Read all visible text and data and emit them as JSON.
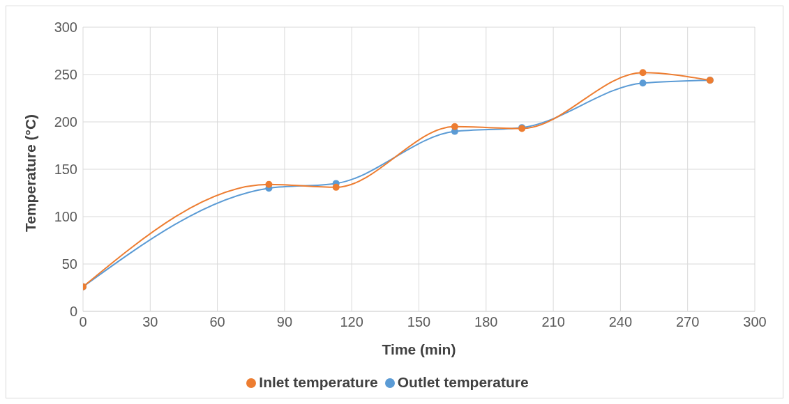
{
  "chart_data": {
    "type": "line",
    "xlabel": "Time (min)",
    "ylabel": "Temperature (°C)",
    "x": [
      0,
      83,
      113,
      166,
      196,
      250,
      280
    ],
    "series": [
      {
        "name": "Outlet temperature",
        "color": "#5b9bd5",
        "values": [
          26,
          130,
          135,
          190,
          194,
          241,
          244
        ]
      },
      {
        "name": "Inlet temperature",
        "color": "#ed7d31",
        "values": [
          26,
          134,
          131,
          195,
          193,
          252,
          244
        ]
      }
    ],
    "xlim": [
      0,
      300
    ],
    "xticks": [
      0,
      30,
      60,
      90,
      120,
      150,
      180,
      210,
      240,
      270,
      300
    ],
    "ylim": [
      0,
      300
    ],
    "yticks": [
      0,
      50,
      100,
      150,
      200,
      250,
      300
    ],
    "grid": true,
    "legend": "bottom",
    "marker": "circle",
    "line_style": "solid"
  }
}
